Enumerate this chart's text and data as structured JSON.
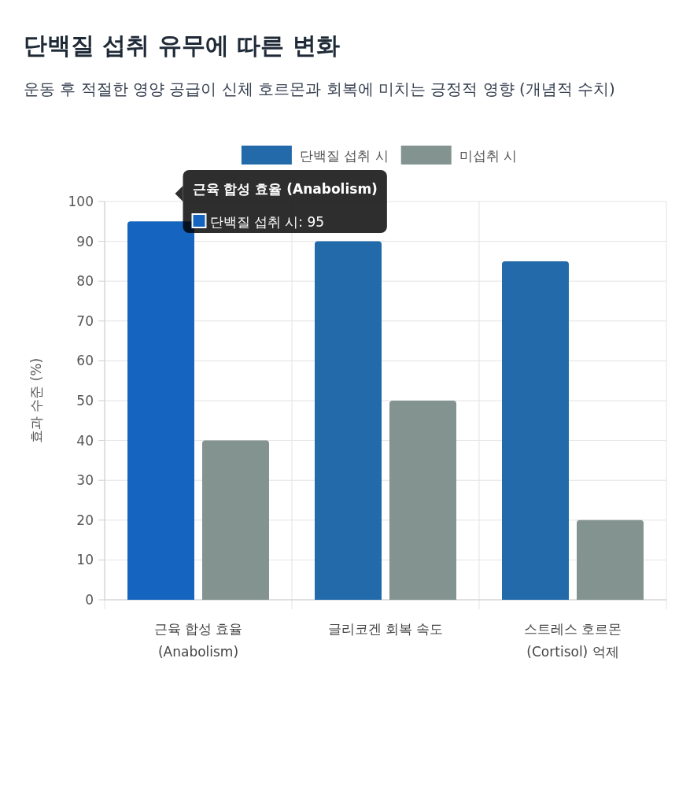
{
  "chart_data": {
    "type": "bar",
    "title": "단백질 섭취 유무에 따른 변화",
    "subtitle": "운동 후 적절한 영양 공급이 신체 호르몬과 회복에 미치는 긍정적 영향 (개념적 수치)",
    "ylabel": "효과 수준 (%)",
    "categories": [
      "근육 합성 효율 (Anabolism)",
      "글리코겐 회복 속도",
      "스트레스 호르몬 (Cortisol) 억제"
    ],
    "series": [
      {
        "name": "단백질 섭취 시",
        "color": "#236aab",
        "colors": [
          "#1565c0",
          "#236aab",
          "#236aab"
        ],
        "values": [
          95,
          90,
          85
        ]
      },
      {
        "name": "미섭취 시",
        "color": "#83938f",
        "values": [
          40,
          50,
          20
        ]
      }
    ],
    "ylim": [
      0,
      100
    ],
    "yticks": [
      0,
      10,
      20,
      30,
      40,
      50,
      60,
      70,
      80,
      90,
      100
    ],
    "grid": true,
    "legend": "top",
    "annotations": [
      "근육 합성 효율 (Anabolism)",
      "단백질 섭취 시: 95"
    ]
  }
}
